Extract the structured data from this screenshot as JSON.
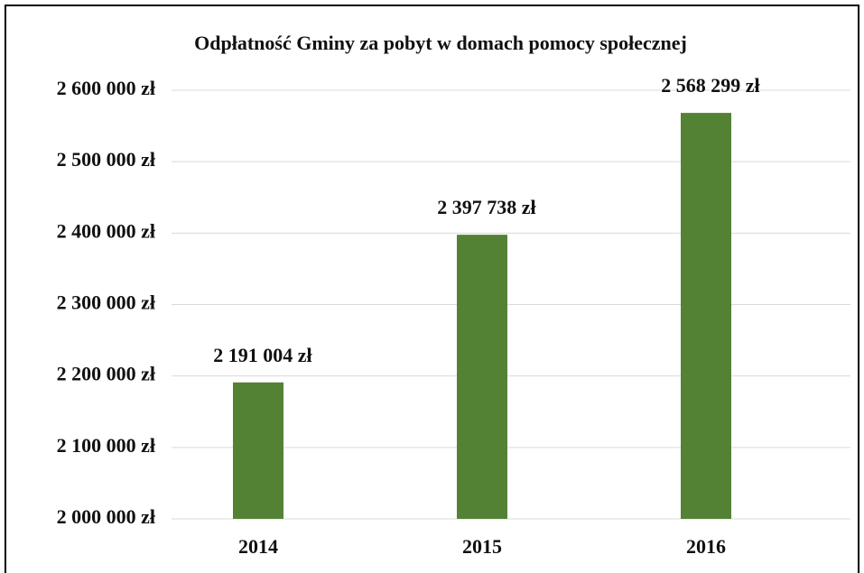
{
  "chart_data": {
    "type": "bar",
    "title": "Odpłatność Gminy za pobyt w domach pomocy społecznej",
    "categories": [
      "2014",
      "2015",
      "2016"
    ],
    "values": [
      2191004,
      2397738,
      2568299
    ],
    "value_labels": [
      "2 191 004 zł",
      "2 397 738 zł",
      "2 568 299 zł"
    ],
    "color": "#548235",
    "ylim": [
      2000000,
      2600000
    ],
    "yticks": [
      {
        "value": 2000000,
        "label": "2 000 000 zł"
      },
      {
        "value": 2100000,
        "label": "2 100 000 zł"
      },
      {
        "value": 2200000,
        "label": "2 200 000 zł"
      },
      {
        "value": 2300000,
        "label": "2 300 000 zł"
      },
      {
        "value": 2400000,
        "label": "2 400 000 zł"
      },
      {
        "value": 2500000,
        "label": "2 500 000 zł"
      },
      {
        "value": 2600000,
        "label": "2 600 000 zł"
      }
    ],
    "grid": true
  }
}
